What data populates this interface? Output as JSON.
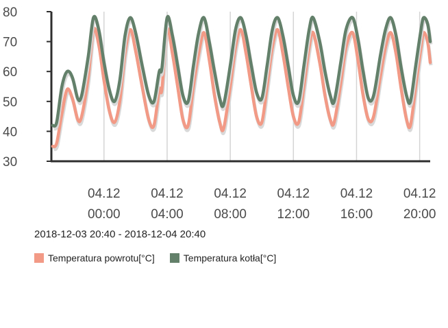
{
  "chart_data": {
    "type": "line",
    "range_label": "2018-12-03 20:40 - 2018-12-04 20:40",
    "ylim": [
      30,
      80
    ],
    "yticks": [
      "30",
      "40",
      "50",
      "60",
      "70",
      "80"
    ],
    "xticks": [
      {
        "date": "04.12",
        "time": "00:00"
      },
      {
        "date": "04.12",
        "time": "04:00"
      },
      {
        "date": "04.12",
        "time": "08:00"
      },
      {
        "date": "04.12",
        "time": "12:00"
      },
      {
        "date": "04.12",
        "time": "16:00"
      },
      {
        "date": "04.12",
        "time": "20:00"
      }
    ],
    "series": [
      {
        "name": "Temperatura powrotu[°C]",
        "color": "#f29a85",
        "points": [
          [
            "2018-12-03 20:45",
            35
          ],
          [
            "2018-12-03 21:00",
            36
          ],
          [
            "2018-12-03 21:20",
            46
          ],
          [
            "2018-12-03 21:40",
            54
          ],
          [
            "2018-12-03 22:00",
            51
          ],
          [
            "2018-12-03 22:20",
            44
          ],
          [
            "2018-12-03 22:35",
            45
          ],
          [
            "2018-12-03 23:00",
            58
          ],
          [
            "2018-12-03 23:20",
            74
          ],
          [
            "2018-12-03 23:40",
            69
          ],
          [
            "2018-12-04 00:00",
            57
          ],
          [
            "2018-12-04 00:20",
            47
          ],
          [
            "2018-12-04 00:40",
            43
          ],
          [
            "2018-12-04 01:00",
            50
          ],
          [
            "2018-12-04 01:20",
            66
          ],
          [
            "2018-12-04 01:40",
            74
          ],
          [
            "2018-12-04 02:00",
            67
          ],
          [
            "2018-12-04 02:25",
            55
          ],
          [
            "2018-12-04 02:50",
            44
          ],
          [
            "2018-12-04 03:10",
            42
          ],
          [
            "2018-12-04 03:30",
            54
          ],
          [
            "2018-12-04 03:40",
            54
          ],
          [
            "2018-12-04 04:00",
            74
          ],
          [
            "2018-12-04 04:20",
            66
          ],
          [
            "2018-12-04 04:40",
            55
          ],
          [
            "2018-12-04 05:00",
            44
          ],
          [
            "2018-12-04 05:20",
            42
          ],
          [
            "2018-12-04 05:40",
            55
          ],
          [
            "2018-12-04 06:00",
            66
          ],
          [
            "2018-12-04 06:20",
            73
          ],
          [
            "2018-12-04 06:40",
            64
          ],
          [
            "2018-12-04 07:00",
            52
          ],
          [
            "2018-12-04 07:20",
            43
          ],
          [
            "2018-12-04 07:35",
            41
          ],
          [
            "2018-12-04 08:00",
            55
          ],
          [
            "2018-12-04 08:20",
            68
          ],
          [
            "2018-12-04 08:40",
            74
          ],
          [
            "2018-12-04 09:00",
            66
          ],
          [
            "2018-12-04 09:20",
            55
          ],
          [
            "2018-12-04 09:40",
            45
          ],
          [
            "2018-12-04 10:00",
            43
          ],
          [
            "2018-12-04 10:20",
            55
          ],
          [
            "2018-12-04 10:40",
            68
          ],
          [
            "2018-12-04 11:00",
            74
          ],
          [
            "2018-12-04 11:20",
            66
          ],
          [
            "2018-12-04 11:40",
            55
          ],
          [
            "2018-12-04 12:00",
            45
          ],
          [
            "2018-12-04 12:20",
            43
          ],
          [
            "2018-12-04 12:40",
            55
          ],
          [
            "2018-12-04 13:00",
            68
          ],
          [
            "2018-12-04 13:15",
            73
          ],
          [
            "2018-12-04 13:40",
            63
          ],
          [
            "2018-12-04 14:00",
            52
          ],
          [
            "2018-12-04 14:20",
            44
          ],
          [
            "2018-12-04 14:35",
            43
          ],
          [
            "2018-12-04 15:00",
            56
          ],
          [
            "2018-12-04 15:20",
            68
          ],
          [
            "2018-12-04 15:45",
            73
          ],
          [
            "2018-12-04 16:05",
            64
          ],
          [
            "2018-12-04 16:25",
            52
          ],
          [
            "2018-12-04 16:45",
            44
          ],
          [
            "2018-12-04 17:05",
            45
          ],
          [
            "2018-12-04 17:30",
            58
          ],
          [
            "2018-12-04 17:50",
            68
          ],
          [
            "2018-12-04 18:10",
            73
          ],
          [
            "2018-12-04 18:30",
            66
          ],
          [
            "2018-12-04 18:50",
            54
          ],
          [
            "2018-12-04 19:10",
            44
          ],
          [
            "2018-12-04 19:25",
            42
          ],
          [
            "2018-12-04 19:45",
            55
          ],
          [
            "2018-12-04 20:05",
            68
          ],
          [
            "2018-12-04 20:15",
            73
          ],
          [
            "2018-12-04 20:30",
            70
          ],
          [
            "2018-12-04 20:40",
            63
          ]
        ]
      },
      {
        "name": "Temperatura kotła[°C]",
        "color": "#63806a",
        "points": [
          [
            "2018-12-03 20:45",
            42
          ],
          [
            "2018-12-03 21:00",
            43
          ],
          [
            "2018-12-03 21:20",
            55
          ],
          [
            "2018-12-03 21:40",
            60
          ],
          [
            "2018-12-03 22:00",
            58
          ],
          [
            "2018-12-03 22:20",
            51
          ],
          [
            "2018-12-03 22:35",
            52
          ],
          [
            "2018-12-03 23:00",
            65
          ],
          [
            "2018-12-03 23:20",
            78
          ],
          [
            "2018-12-03 23:40",
            74
          ],
          [
            "2018-12-04 00:00",
            63
          ],
          [
            "2018-12-04 00:20",
            54
          ],
          [
            "2018-12-04 00:40",
            50
          ],
          [
            "2018-12-04 01:00",
            57
          ],
          [
            "2018-12-04 01:20",
            72
          ],
          [
            "2018-12-04 01:40",
            78
          ],
          [
            "2018-12-04 02:00",
            73
          ],
          [
            "2018-12-04 02:25",
            62
          ],
          [
            "2018-12-04 02:50",
            52
          ],
          [
            "2018-12-04 03:10",
            50
          ],
          [
            "2018-12-04 03:30",
            60
          ],
          [
            "2018-12-04 03:40",
            61
          ],
          [
            "2018-12-04 04:00",
            78
          ],
          [
            "2018-12-04 04:20",
            72
          ],
          [
            "2018-12-04 04:40",
            62
          ],
          [
            "2018-12-04 05:00",
            52
          ],
          [
            "2018-12-04 05:20",
            50
          ],
          [
            "2018-12-04 05:40",
            62
          ],
          [
            "2018-12-04 06:00",
            73
          ],
          [
            "2018-12-04 06:20",
            78
          ],
          [
            "2018-12-04 06:40",
            70
          ],
          [
            "2018-12-04 07:00",
            60
          ],
          [
            "2018-12-04 07:20",
            51
          ],
          [
            "2018-12-04 07:35",
            49
          ],
          [
            "2018-12-04 08:00",
            62
          ],
          [
            "2018-12-04 08:20",
            74
          ],
          [
            "2018-12-04 08:40",
            78
          ],
          [
            "2018-12-04 09:00",
            72
          ],
          [
            "2018-12-04 09:20",
            62
          ],
          [
            "2018-12-04 09:40",
            53
          ],
          [
            "2018-12-04 10:00",
            51
          ],
          [
            "2018-12-04 10:20",
            62
          ],
          [
            "2018-12-04 10:40",
            74
          ],
          [
            "2018-12-04 11:00",
            78
          ],
          [
            "2018-12-04 11:20",
            72
          ],
          [
            "2018-12-04 11:40",
            62
          ],
          [
            "2018-12-04 12:00",
            52
          ],
          [
            "2018-12-04 12:20",
            50
          ],
          [
            "2018-12-04 12:40",
            62
          ],
          [
            "2018-12-04 13:00",
            74
          ],
          [
            "2018-12-04 13:15",
            78
          ],
          [
            "2018-12-04 13:40",
            70
          ],
          [
            "2018-12-04 14:00",
            60
          ],
          [
            "2018-12-04 14:20",
            52
          ],
          [
            "2018-12-04 14:35",
            50
          ],
          [
            "2018-12-04 15:00",
            63
          ],
          [
            "2018-12-04 15:20",
            74
          ],
          [
            "2018-12-04 15:45",
            78
          ],
          [
            "2018-12-04 16:05",
            71
          ],
          [
            "2018-12-04 16:25",
            60
          ],
          [
            "2018-12-04 16:45",
            51
          ],
          [
            "2018-12-04 17:05",
            52
          ],
          [
            "2018-12-04 17:30",
            65
          ],
          [
            "2018-12-04 17:50",
            74
          ],
          [
            "2018-12-04 18:10",
            78
          ],
          [
            "2018-12-04 18:30",
            72
          ],
          [
            "2018-12-04 18:50",
            61
          ],
          [
            "2018-12-04 19:10",
            52
          ],
          [
            "2018-12-04 19:25",
            50
          ],
          [
            "2018-12-04 19:45",
            62
          ],
          [
            "2018-12-04 20:05",
            74
          ],
          [
            "2018-12-04 20:15",
            78
          ],
          [
            "2018-12-04 20:30",
            76
          ],
          [
            "2018-12-04 20:40",
            70
          ]
        ]
      }
    ],
    "grid": {
      "x": true,
      "y": false
    },
    "legend_position": "bottom-left"
  }
}
